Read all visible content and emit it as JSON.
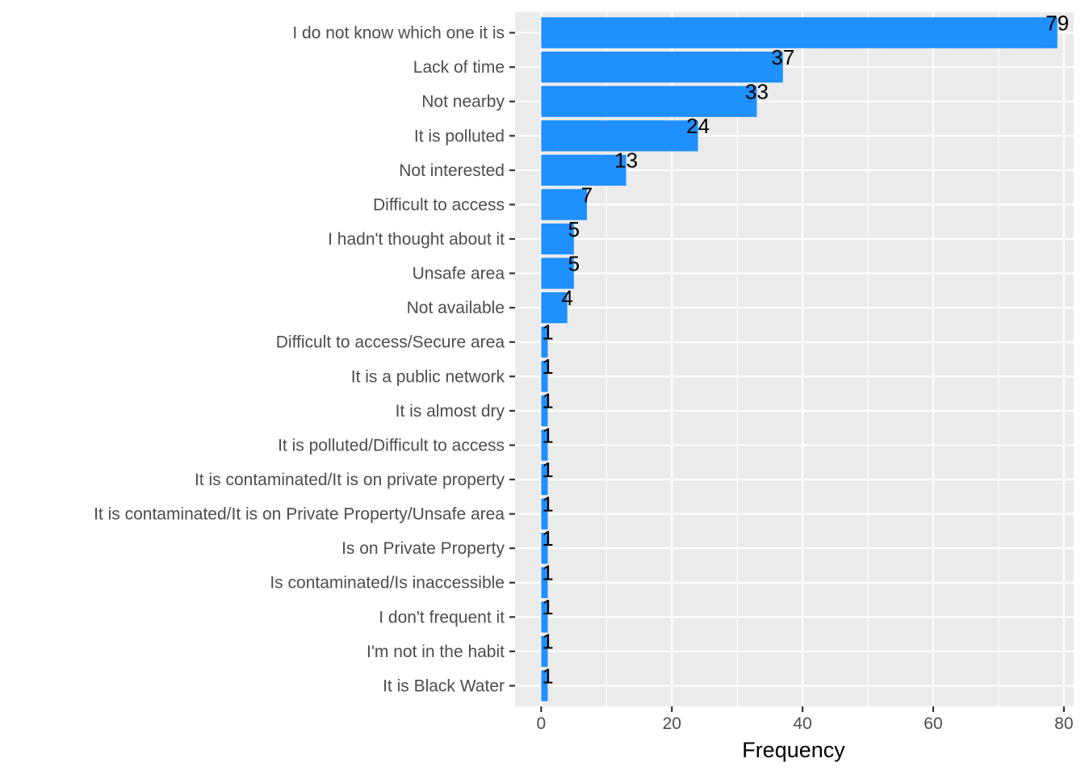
{
  "chart_data": {
    "type": "bar",
    "orientation": "horizontal",
    "categories": [
      "I do not know which one it is",
      "Lack of time",
      "Not nearby",
      "It is polluted",
      "Not interested",
      "Difficult to access",
      "I hadn't thought about it",
      "Unsafe area",
      "Not available",
      "Difficult to access/Secure area",
      "It is a public network",
      "It is almost dry",
      "It is polluted/Difficult to access",
      "It is contaminated/It is on private property",
      "It is contaminated/It is on Private Property/Unsafe area",
      "Is on Private Property",
      "Is contaminated/Is inaccessible",
      "I don't frequent it",
      "I'm not in the habit",
      "It is Black Water"
    ],
    "values": [
      79,
      37,
      33,
      24,
      13,
      7,
      5,
      5,
      4,
      1,
      1,
      1,
      1,
      1,
      1,
      1,
      1,
      1,
      1,
      1
    ],
    "xlabel": "Frequency",
    "ylabel": "",
    "xlim": [
      -4,
      81.5
    ],
    "xticks": [
      0,
      20,
      40,
      60,
      80
    ],
    "grid": true,
    "data_labels": true,
    "colors": {
      "bar": "#1E90FF",
      "panel": "#EBEBEB",
      "grid_major": "#FFFFFF",
      "tick_text": "#4D4D4D",
      "label_text": "#000000"
    }
  }
}
